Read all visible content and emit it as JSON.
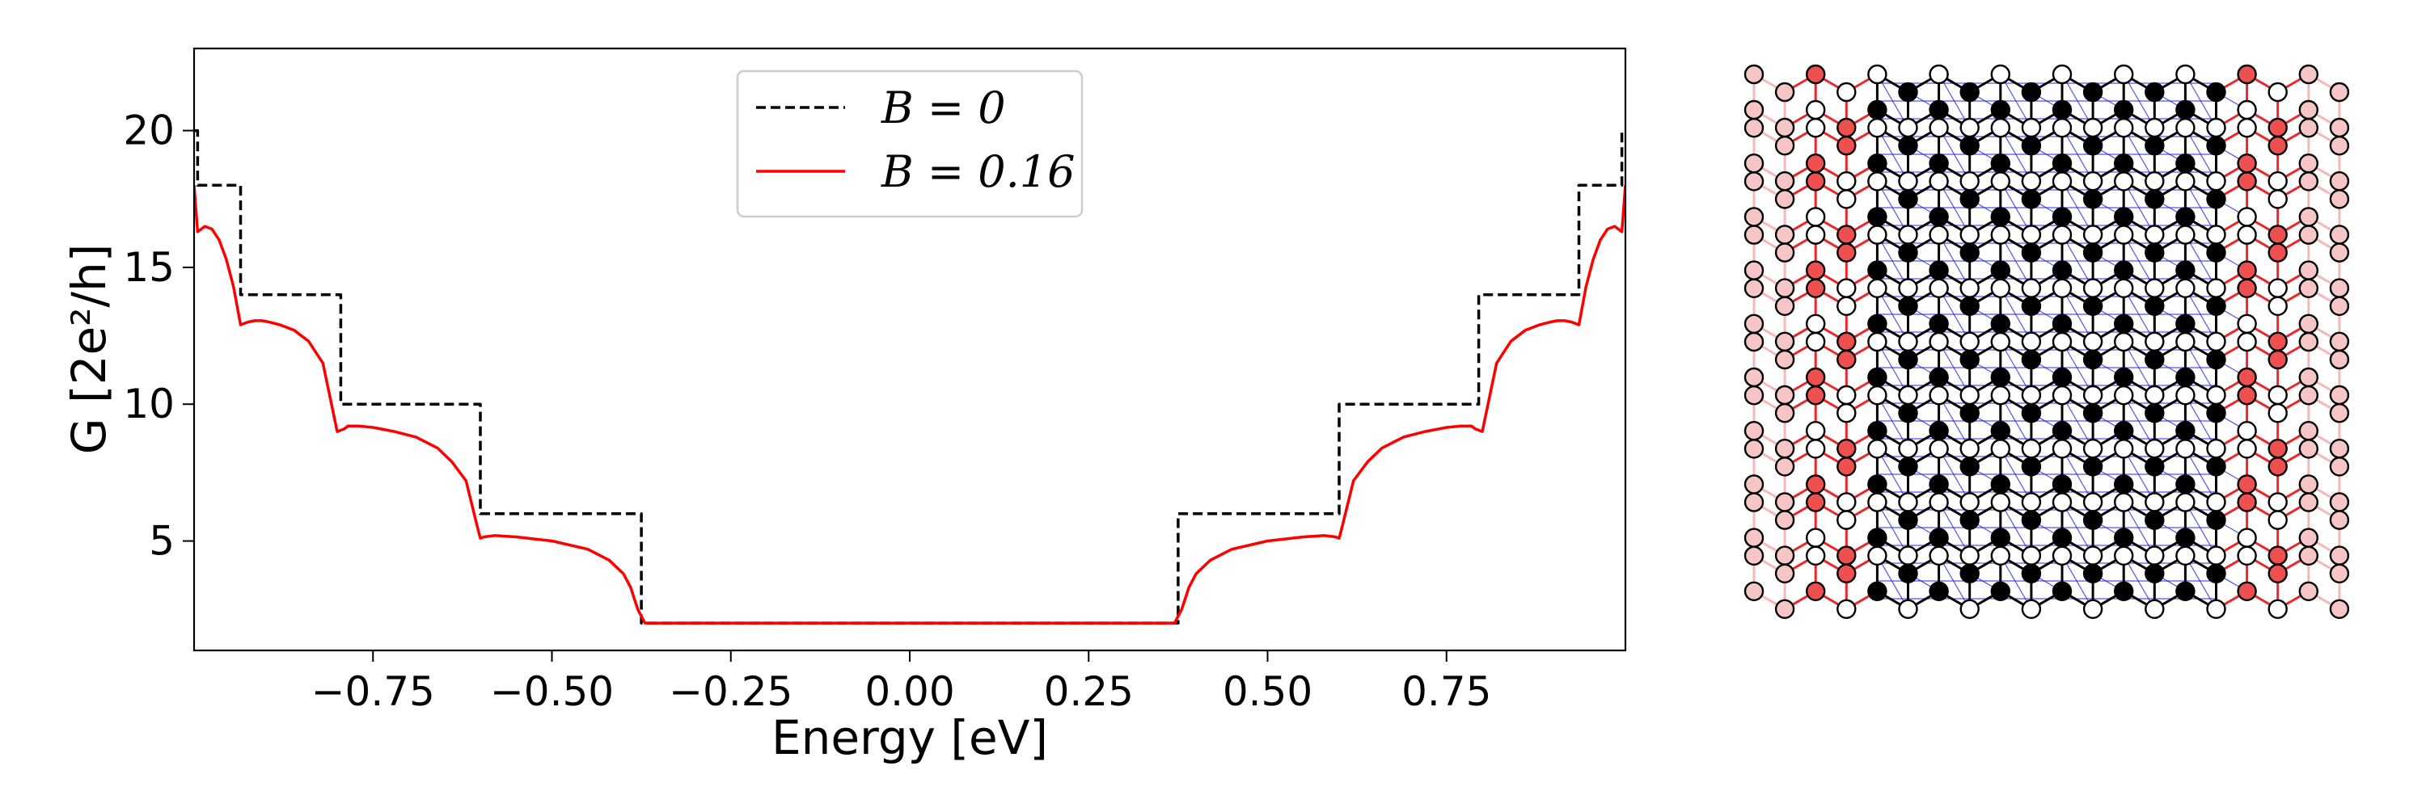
{
  "chart_data": [
    {
      "type": "line",
      "title": "",
      "xlabel": "Energy [eV]",
      "ylabel": "G [2e²/h]",
      "xlim": [
        -1.0,
        1.0
      ],
      "ylim": [
        1.0,
        23.0
      ],
      "xticks": [
        -0.75,
        -0.5,
        -0.25,
        0.0,
        0.25,
        0.5,
        0.75
      ],
      "xtick_labels": [
        "−0.75",
        "−0.50",
        "−0.25",
        "0.00",
        "0.25",
        "0.50",
        "0.75"
      ],
      "yticks": [
        5,
        10,
        15,
        20
      ],
      "ytick_labels": [
        "5",
        "10",
        "15",
        "20"
      ],
      "grid": false,
      "legend_position": "top-center",
      "series": [
        {
          "name": "B = 0",
          "style": "dashed",
          "color": "#000000",
          "x": [
            -1.0,
            -0.995,
            -0.995,
            -0.935,
            -0.935,
            -0.795,
            -0.795,
            -0.6,
            -0.6,
            -0.375,
            -0.375,
            0.375,
            0.375,
            0.6,
            0.6,
            0.795,
            0.795,
            0.935,
            0.935,
            0.995,
            0.995,
            1.0
          ],
          "y": [
            20,
            20,
            18,
            18,
            14,
            14,
            10,
            10,
            6,
            6,
            2,
            2,
            6,
            6,
            10,
            10,
            14,
            14,
            18,
            18,
            20,
            20
          ]
        },
        {
          "name": "B = 0.16",
          "style": "solid",
          "color": "#ff0000",
          "x": [
            -1.0,
            -0.995,
            -0.985,
            -0.975,
            -0.965,
            -0.955,
            -0.945,
            -0.935,
            -0.925,
            -0.915,
            -0.905,
            -0.895,
            -0.88,
            -0.86,
            -0.84,
            -0.82,
            -0.8,
            -0.79,
            -0.785,
            -0.78,
            -0.77,
            -0.75,
            -0.72,
            -0.69,
            -0.66,
            -0.64,
            -0.62,
            -0.605,
            -0.6,
            -0.595,
            -0.58,
            -0.55,
            -0.5,
            -0.45,
            -0.42,
            -0.4,
            -0.39,
            -0.38,
            -0.37,
            0.37,
            0.38,
            0.39,
            0.4,
            0.42,
            0.45,
            0.5,
            0.55,
            0.58,
            0.595,
            0.6,
            0.605,
            0.62,
            0.64,
            0.66,
            0.69,
            0.72,
            0.75,
            0.77,
            0.78,
            0.785,
            0.79,
            0.8,
            0.82,
            0.84,
            0.86,
            0.88,
            0.895,
            0.905,
            0.915,
            0.925,
            0.935,
            0.945,
            0.955,
            0.965,
            0.975,
            0.985,
            0.995,
            1.0
          ],
          "y": [
            18.0,
            16.3,
            16.5,
            16.4,
            16.0,
            15.3,
            14.3,
            12.9,
            13.0,
            13.05,
            13.05,
            13.0,
            12.9,
            12.7,
            12.3,
            11.5,
            9.0,
            9.1,
            9.2,
            9.2,
            9.2,
            9.15,
            9.0,
            8.8,
            8.4,
            7.9,
            7.2,
            5.6,
            5.1,
            5.15,
            5.2,
            5.15,
            5.0,
            4.7,
            4.3,
            3.8,
            3.3,
            2.5,
            2.0,
            2.0,
            2.5,
            3.3,
            3.8,
            4.3,
            4.7,
            5.0,
            5.15,
            5.2,
            5.15,
            5.1,
            5.6,
            7.2,
            7.9,
            8.4,
            8.8,
            9.0,
            9.15,
            9.2,
            9.2,
            9.2,
            9.1,
            9.0,
            11.5,
            12.3,
            12.7,
            12.9,
            13.0,
            13.05,
            13.05,
            13.0,
            12.9,
            14.3,
            15.3,
            16.0,
            16.4,
            16.5,
            16.3,
            18.0
          ]
        }
      ]
    },
    {
      "type": "diagram",
      "title": "",
      "description_free": true,
      "lattice": {
        "columns": 20,
        "rows": 10,
        "outer_columns": [
          0,
          1,
          18,
          19
        ],
        "edge_columns": [
          2,
          3,
          16,
          17
        ],
        "colors": {
          "outer_bond": "#f7b7b7",
          "edge_bond": "#e8282b",
          "inner_bond": "#000000",
          "hopping": "#1c1ce0",
          "outer_site": "#f6c6c6",
          "edge_site": "#ee4f4f",
          "site_white": "#ffffff",
          "site_black": "#000000"
        }
      }
    }
  ]
}
